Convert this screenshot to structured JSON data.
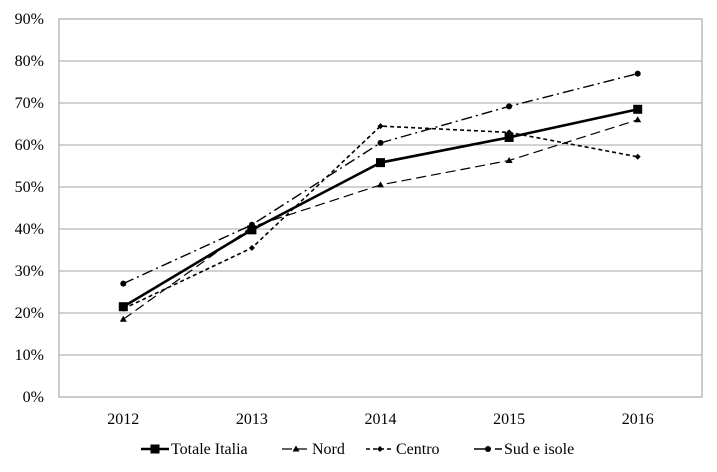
{
  "chart_data": {
    "type": "line",
    "title": "",
    "xlabel": "",
    "ylabel": "",
    "categories": [
      "2012",
      "2013",
      "2014",
      "2015",
      "2016"
    ],
    "ylim": [
      0,
      90
    ],
    "y_ticks": [
      "0%",
      "10%",
      "20%",
      "30%",
      "40%",
      "50%",
      "60%",
      "70%",
      "80%",
      "90%"
    ],
    "grid": "horizontal major gridlines",
    "legend_position": "bottom",
    "series": [
      {
        "name": "Totale Italia",
        "values": [
          21.5,
          39.8,
          55.8,
          61.8,
          68.5
        ],
        "line_style": "solid",
        "marker": "square"
      },
      {
        "name": "Nord",
        "values": [
          18.5,
          40.5,
          50.5,
          56.3,
          66.0
        ],
        "line_style": "long-dash",
        "marker": "triangle"
      },
      {
        "name": "Centro",
        "values": [
          21.0,
          35.5,
          64.5,
          63.0,
          57.2
        ],
        "line_style": "short-dash",
        "marker": "diamond"
      },
      {
        "name": "Sud e isole",
        "values": [
          27.0,
          41.0,
          60.5,
          69.2,
          77.0
        ],
        "line_style": "dash-dot",
        "marker": "circle"
      }
    ]
  }
}
